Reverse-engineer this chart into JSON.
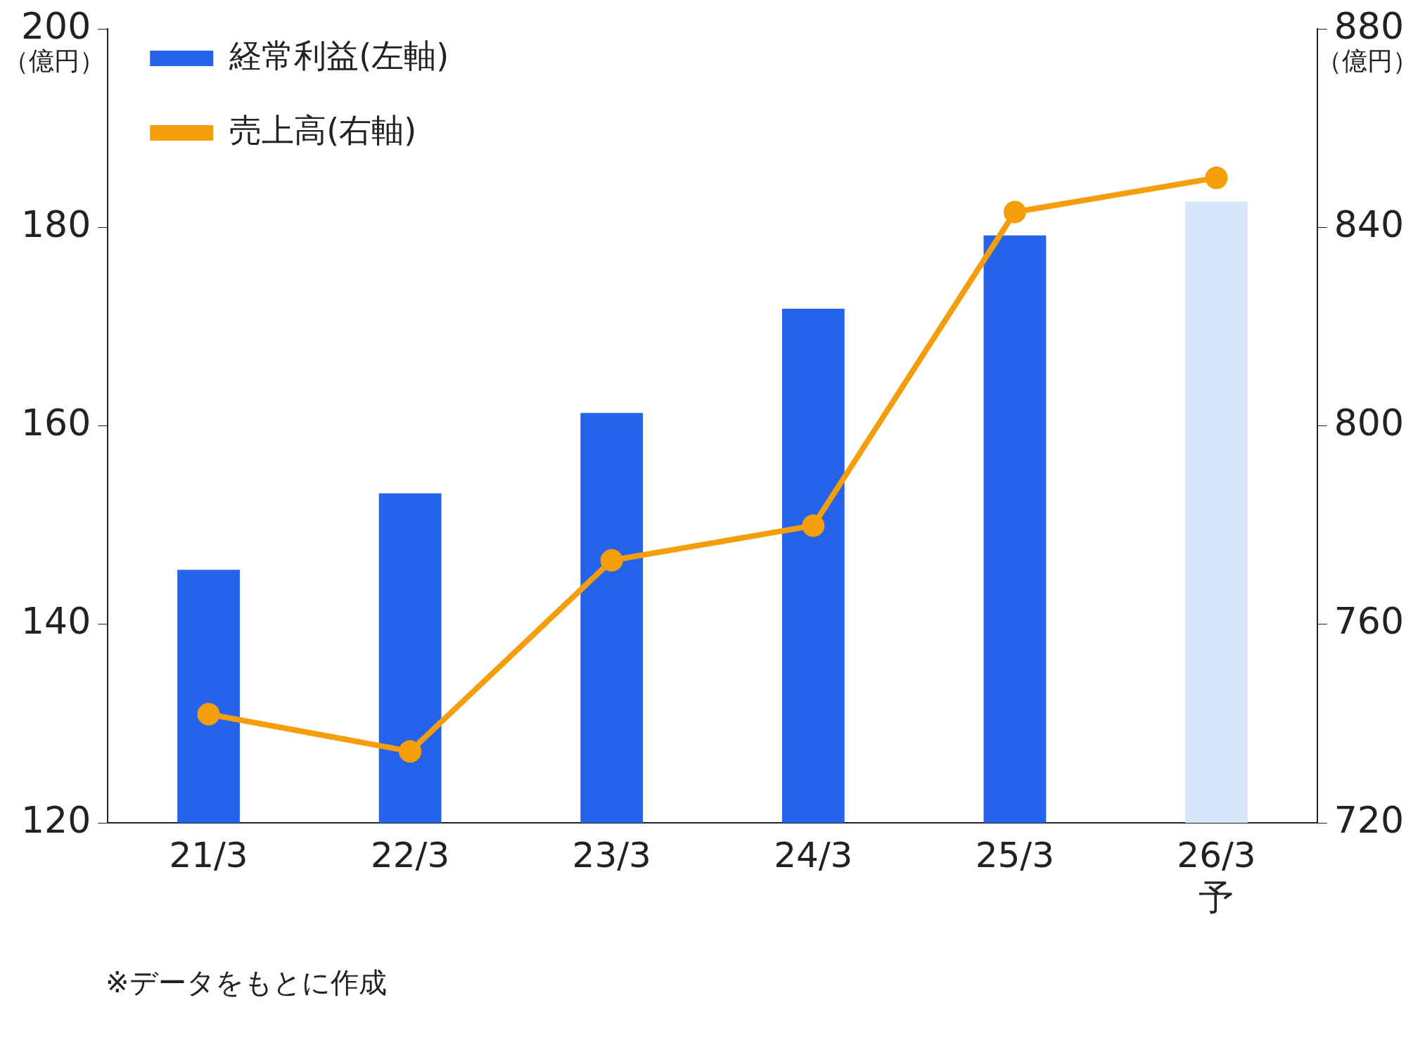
{
  "chart_data": {
    "type": "bar",
    "categories": [
      "21/3",
      "22/3",
      "23/3",
      "24/3",
      "25/3",
      "26/3\n予"
    ],
    "ylabel": "（億円）",
    "y2label": "（億円）",
    "series": [
      {
        "name": "経常利益(左軸)",
        "color": "#2563eb",
        "colors": [
          "#2563eb",
          "#2563eb",
          "#2563eb",
          "#2563eb",
          "#2563eb",
          "#d6e6fb"
        ],
        "values": [
          145.5,
          153.2,
          161.3,
          171.8,
          179.2,
          182.6
        ]
      },
      {
        "name": "売上高(右軸)",
        "type": "line",
        "axis": "y2",
        "color": "#f59e0b",
        "marker": "circle",
        "values": [
          741.9,
          734.4,
          772.9,
          779.9,
          843.1,
          850
        ]
      }
    ],
    "ylim": [
      120,
      200
    ],
    "yticks": [
      120,
      140,
      160,
      180,
      200
    ],
    "y2lim": [
      720,
      880
    ],
    "y2ticks": [
      720,
      760,
      800,
      840,
      880
    ],
    "grid": false,
    "legend": "top left",
    "annotations": [
      "※データをもとに作成"
    ]
  }
}
